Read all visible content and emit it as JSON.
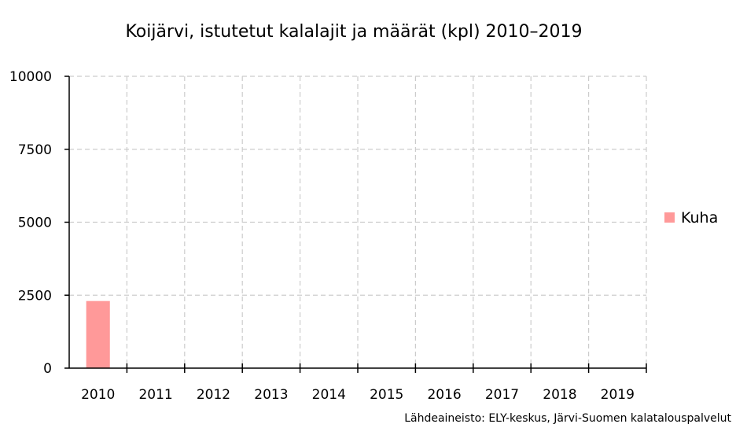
{
  "chart_data": {
    "type": "bar",
    "title": "Koijärvi, istutetut kalalajit ja määrät (kpl) 2010–2019",
    "categories": [
      "2010",
      "2011",
      "2012",
      "2013",
      "2014",
      "2015",
      "2016",
      "2017",
      "2018",
      "2019"
    ],
    "series": [
      {
        "name": "Kuha",
        "values": [
          2300,
          0,
          0,
          0,
          0,
          0,
          0,
          0,
          0,
          0
        ],
        "color": "#ff9999"
      }
    ],
    "ylim": [
      0,
      10000
    ],
    "yticks": [
      "10000",
      "7500",
      "5000",
      "2500",
      "0"
    ],
    "grid": true,
    "legend_position": "right",
    "source": "Lähdeaineisto: ELY-keskus, Järvi-Suomen kalatalouspalvelut"
  }
}
